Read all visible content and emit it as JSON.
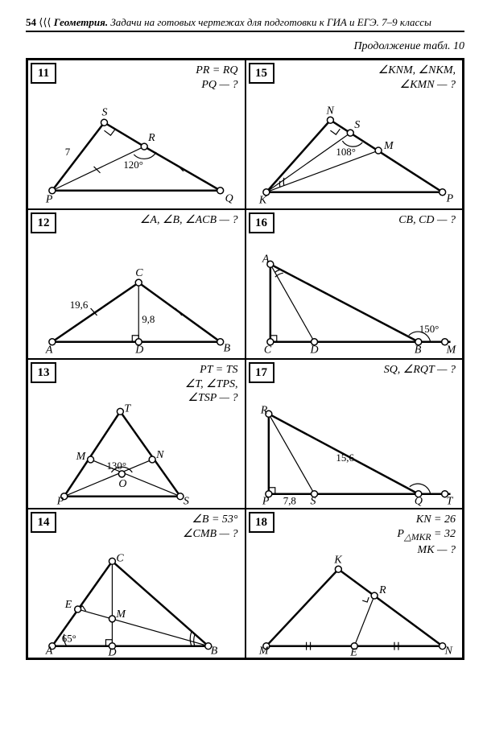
{
  "header": {
    "page": "54",
    "glyph": "⟨⟨⟨",
    "section": "Геометрия.",
    "rest": "Задачи на готовых чертежах для подготовки к ГИА и ЕГЭ. 7–9 классы"
  },
  "subtitle": "Продолжение табл. 10",
  "cells": [
    {
      "n": "11",
      "q": "PR = RQ<br>PQ — ?",
      "labels": {
        "S": "S",
        "R": "R",
        "P": "P",
        "Q": "Q",
        "seven": "7",
        "ang": "120°"
      }
    },
    {
      "n": "15",
      "q": "∠KNM, ∠NKM,<br>∠KMN — ?",
      "labels": {
        "N": "N",
        "S": "S",
        "M": "M",
        "K": "K",
        "P": "P",
        "ang": "108°"
      }
    },
    {
      "n": "12",
      "q": "∠A, ∠B, ∠ACB — ?",
      "labels": {
        "C": "C",
        "A": "A",
        "B": "B",
        "D": "D",
        "s1": "19,6",
        "s2": "9,8"
      }
    },
    {
      "n": "16",
      "q": "CB, CD — ?",
      "labels": {
        "A": "A",
        "C": "C",
        "D": "D",
        "B": "B",
        "M": "M",
        "ang": "150°"
      }
    },
    {
      "n": "13",
      "q": "PT = TS<br>∠T, ∠TPS,<br>∠TSP — ?",
      "labels": {
        "T": "T",
        "M": "M",
        "N": "N",
        "O": "O",
        "P": "P",
        "S": "S",
        "ang": "130°"
      }
    },
    {
      "n": "17",
      "q": "SQ, ∠RQT — ?",
      "labels": {
        "R": "R",
        "P": "P",
        "S": "S",
        "Q": "Q",
        "T": "T",
        "len": "15,6",
        "b": "7,8"
      }
    },
    {
      "n": "14",
      "q": "∠B = 53°<br>∠CMB — ?",
      "labels": {
        "C": "C",
        "E": "E",
        "M": "M",
        "A": "A",
        "D": "D",
        "B": "B",
        "ang": "65°"
      }
    },
    {
      "n": "18",
      "q": "KN = 26<br>P<sub>△MKR</sub> = 32<br>MK — ?",
      "labels": {
        "K": "K",
        "R": "R",
        "M": "M",
        "E": "E",
        "N": "N"
      }
    }
  ]
}
